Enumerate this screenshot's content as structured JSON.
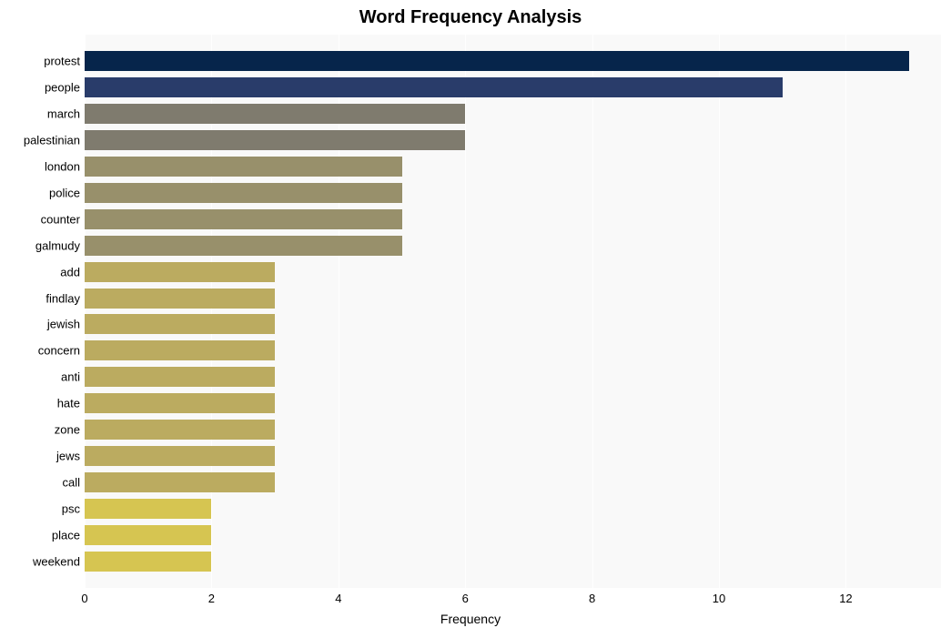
{
  "chart": {
    "type": "bar",
    "orientation": "horizontal",
    "title": "Word Frequency Analysis",
    "title_fontsize": 20,
    "title_fontweight": "bold",
    "xlabel": "Frequency",
    "xlabel_fontsize": 14,
    "background_color": "#ffffff",
    "plot_background_color": "#f9f9f9",
    "grid_color": "#ffffff",
    "xlim": [
      0,
      13.5
    ],
    "xtick_step": 2,
    "xticks": [
      0,
      2,
      4,
      6,
      8,
      10,
      12
    ],
    "label_fontsize": 13,
    "bar_height_ratio": 0.76,
    "categories": [
      "protest",
      "people",
      "march",
      "palestinian",
      "london",
      "police",
      "counter",
      "galmudy",
      "add",
      "findlay",
      "jewish",
      "concern",
      "anti",
      "hate",
      "zone",
      "jews",
      "call",
      "psc",
      "place",
      "weekend"
    ],
    "values": [
      13,
      11,
      6,
      6,
      5,
      5,
      5,
      5,
      3,
      3,
      3,
      3,
      3,
      3,
      3,
      3,
      3,
      2,
      2,
      2
    ],
    "bar_colors": [
      "#06254b",
      "#293c6a",
      "#7f7b6e",
      "#7f7b6e",
      "#98906b",
      "#98906b",
      "#98906b",
      "#98906b",
      "#bbab60",
      "#bbab60",
      "#bbab60",
      "#bbab60",
      "#bbab60",
      "#bbab60",
      "#bbab60",
      "#bbab60",
      "#bbab60",
      "#d6c551",
      "#d6c551",
      "#d6c551"
    ]
  }
}
